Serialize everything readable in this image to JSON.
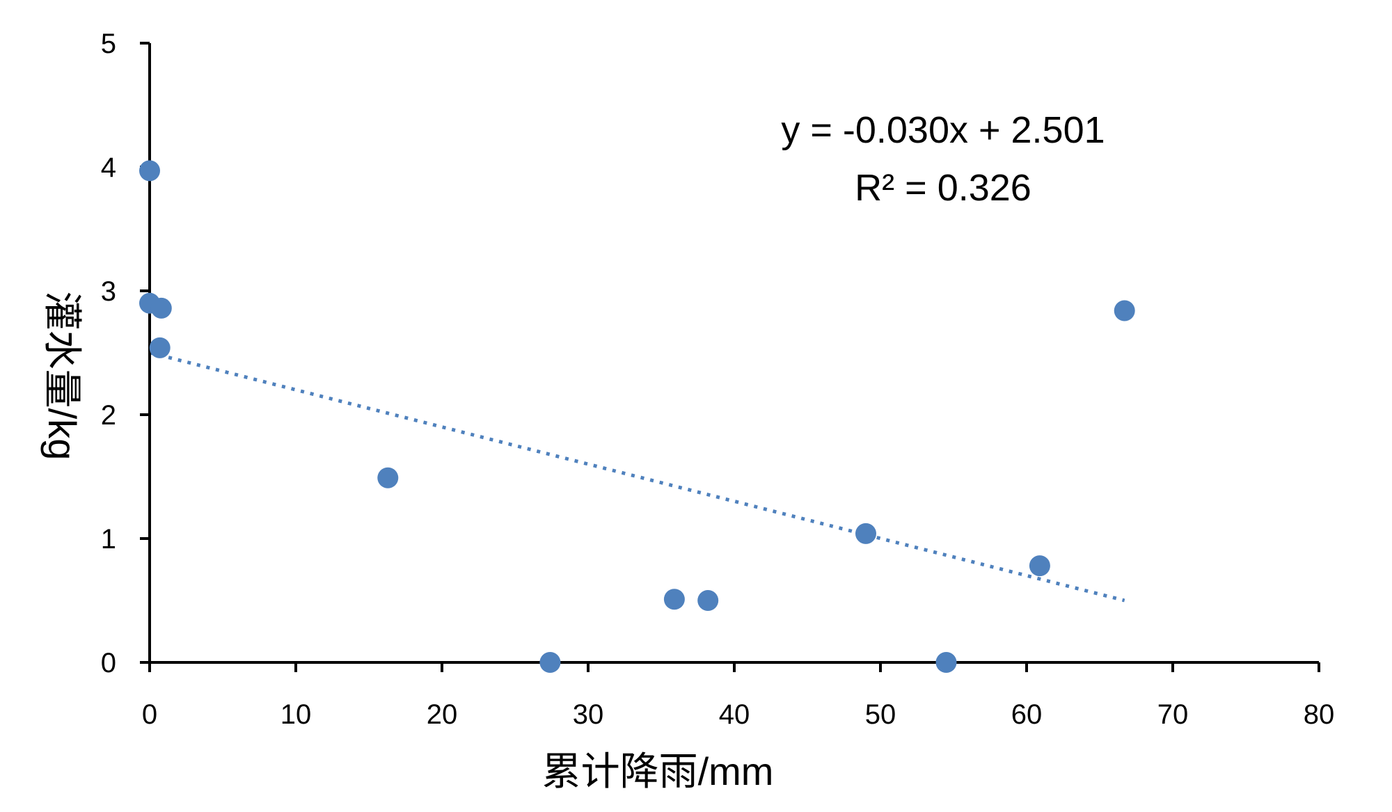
{
  "chart_data": {
    "type": "scatter",
    "title": "",
    "xlabel": "累计降雨/mm",
    "ylabel": "灌水量/kg",
    "xlim": [
      0,
      80
    ],
    "ylim": [
      0,
      5
    ],
    "x_ticks": [
      "0",
      "10",
      "20",
      "30",
      "40",
      "50",
      "60",
      "70",
      "80"
    ],
    "y_ticks": [
      "0",
      "1",
      "2",
      "3",
      "4",
      "5"
    ],
    "grid": false,
    "legend": "none",
    "marker_color": "#4f81bd",
    "trendline_color": "#4f81bd",
    "points": [
      {
        "x": 0.0,
        "y": 3.97
      },
      {
        "x": 0.0,
        "y": 2.9
      },
      {
        "x": 0.8,
        "y": 2.86
      },
      {
        "x": 0.7,
        "y": 2.54
      },
      {
        "x": 16.3,
        "y": 1.49
      },
      {
        "x": 27.4,
        "y": 0.0
      },
      {
        "x": 35.9,
        "y": 0.51
      },
      {
        "x": 38.2,
        "y": 0.5
      },
      {
        "x": 49.0,
        "y": 1.04
      },
      {
        "x": 54.5,
        "y": 0.0
      },
      {
        "x": 60.9,
        "y": 0.78
      },
      {
        "x": 66.7,
        "y": 2.84
      }
    ],
    "trendline": {
      "type": "linear",
      "slope": -0.03,
      "intercept": 2.501,
      "x_range": [
        0,
        66.7
      ],
      "style": "dotted"
    },
    "annotations": {
      "equation": "y = -0.030x + 2.501",
      "r_squared": "R² = 0.326"
    }
  }
}
